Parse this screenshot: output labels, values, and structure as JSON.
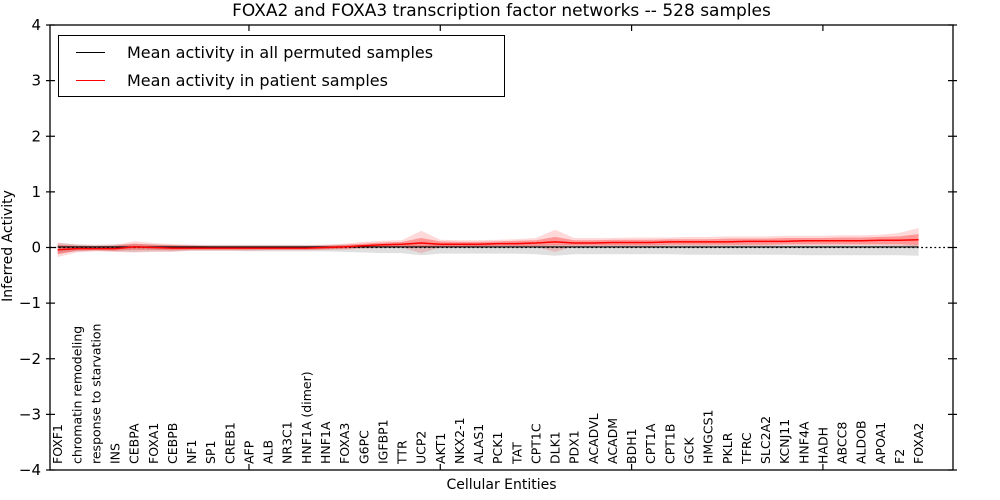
{
  "title": "FOXA2 and FOXA3 transcription factor networks -- 528 samples",
  "legend": {
    "items": [
      {
        "label": "Mean activity in all permuted samples",
        "color": "#000000"
      },
      {
        "label": "Mean activity in patient samples",
        "color": "#ff0000"
      }
    ]
  },
  "chart_data": {
    "type": "line",
    "title": "FOXA2 and FOXA3 transcription factor networks -- 528 samples",
    "xlabel": "Cellular Entities",
    "ylabel": "Inferred Activity",
    "ylim": [
      -4,
      4
    ],
    "yticks": [
      4,
      3,
      2,
      1,
      0,
      -1,
      -2,
      -3,
      -4
    ],
    "ytick_labels": [
      "4",
      "3",
      "2",
      "1",
      "0",
      "−1",
      "−2",
      "−3",
      "−4"
    ],
    "xticks": [
      10,
      20,
      30,
      40
    ],
    "grid": false,
    "legend_position": "upper left",
    "zero_line": 0,
    "categories": [
      "FOXF1",
      "chromatin remodeling",
      "response to starvation",
      "INS",
      "CEBPA",
      "FOXA1",
      "CEBPB",
      "NF1",
      "SP1",
      "CREB1",
      "AFP",
      "ALB",
      "NR3C1",
      "HNF1A (dimer)",
      "HNF1A",
      "FOXA3",
      "G6PC",
      "IGFBP1",
      "TTR",
      "UCP2",
      "AKT1",
      "NKX2-1",
      "ALAS1",
      "PCK1",
      "TAT",
      "CPT1C",
      "DLK1",
      "PDX1",
      "ACADVL",
      "ACADM",
      "BDH1",
      "CPT1A",
      "CPT1B",
      "GCK",
      "HMGCS1",
      "PKLR",
      "TFRC",
      "SLC2A2",
      "KCNJ11",
      "HNF4A",
      "HADH",
      "ABCC8",
      "ALDOB",
      "APOA1",
      "F2",
      "FOXA2"
    ],
    "series": [
      {
        "name": "Mean activity in all permuted samples",
        "color": "#000000",
        "width": 1.1,
        "values": [
          0.01,
          0.01,
          0.01,
          0.01,
          0.01,
          0.01,
          0.01,
          0.01,
          0.01,
          0.01,
          0.01,
          0.01,
          0.01,
          0.01,
          0.01,
          0.01,
          0.01,
          0.01,
          0.01,
          0.01,
          0.01,
          0.01,
          0.01,
          0.01,
          0.01,
          0.01,
          0.01,
          0.01,
          0.01,
          0.01,
          0.01,
          0.01,
          0.01,
          0.01,
          0.01,
          0.01,
          0.01,
          0.01,
          0.01,
          0.01,
          0.01,
          0.01,
          0.01,
          0.01,
          0.01,
          0.01
        ]
      },
      {
        "name": "Mean activity in patient samples",
        "color": "#ff0000",
        "width": 1.5,
        "values": [
          -0.04,
          -0.02,
          -0.02,
          -0.02,
          0.01,
          0.0,
          -0.01,
          -0.01,
          -0.01,
          -0.01,
          -0.01,
          -0.01,
          -0.01,
          -0.01,
          0.0,
          0.01,
          0.03,
          0.05,
          0.06,
          0.08,
          0.06,
          0.06,
          0.06,
          0.07,
          0.07,
          0.08,
          0.1,
          0.08,
          0.08,
          0.09,
          0.09,
          0.09,
          0.1,
          0.1,
          0.1,
          0.1,
          0.11,
          0.11,
          0.11,
          0.12,
          0.12,
          0.12,
          0.12,
          0.13,
          0.13,
          0.14
        ]
      }
    ],
    "bands": [
      {
        "name": "permuted-range",
        "color": "#000000",
        "opacity": 0.12,
        "low": [
          -0.1,
          -0.07,
          -0.06,
          -0.07,
          -0.08,
          -0.07,
          -0.07,
          -0.06,
          -0.06,
          -0.06,
          -0.07,
          -0.07,
          -0.07,
          -0.07,
          -0.07,
          -0.08,
          -0.09,
          -0.1,
          -0.1,
          -0.14,
          -0.11,
          -0.11,
          -0.11,
          -0.11,
          -0.11,
          -0.12,
          -0.15,
          -0.12,
          -0.12,
          -0.12,
          -0.12,
          -0.12,
          -0.12,
          -0.13,
          -0.13,
          -0.13,
          -0.13,
          -0.13,
          -0.13,
          -0.14,
          -0.14,
          -0.14,
          -0.14,
          -0.14,
          -0.14,
          -0.15
        ],
        "high": [
          0.08,
          0.06,
          0.05,
          0.06,
          0.06,
          0.06,
          0.05,
          0.05,
          0.05,
          0.05,
          0.05,
          0.05,
          0.05,
          0.05,
          0.05,
          0.05,
          0.05,
          0.05,
          0.05,
          0.05,
          0.05,
          0.05,
          0.05,
          0.05,
          0.05,
          0.05,
          0.05,
          0.05,
          0.05,
          0.05,
          0.05,
          0.05,
          0.05,
          0.05,
          0.05,
          0.05,
          0.05,
          0.05,
          0.05,
          0.05,
          0.05,
          0.05,
          0.05,
          0.05,
          0.05,
          0.06
        ]
      },
      {
        "name": "patient-outer",
        "color": "#ff0000",
        "opacity": 0.15,
        "low": [
          -0.17,
          -0.09,
          -0.07,
          -0.08,
          -0.09,
          -0.08,
          -0.08,
          -0.06,
          -0.06,
          -0.06,
          -0.06,
          -0.05,
          -0.05,
          -0.05,
          -0.05,
          -0.04,
          -0.02,
          -0.01,
          0.0,
          -0.1,
          0.0,
          0.0,
          0.0,
          0.01,
          0.01,
          0.01,
          -0.08,
          0.02,
          0.02,
          0.02,
          0.02,
          0.02,
          0.03,
          0.03,
          0.03,
          0.03,
          0.03,
          0.03,
          0.04,
          0.04,
          0.04,
          0.04,
          0.04,
          0.04,
          0.03,
          0.02
        ],
        "high": [
          0.09,
          0.05,
          0.04,
          0.05,
          0.11,
          0.08,
          0.06,
          0.05,
          0.04,
          0.04,
          0.04,
          0.04,
          0.04,
          0.04,
          0.05,
          0.07,
          0.1,
          0.12,
          0.13,
          0.3,
          0.14,
          0.13,
          0.13,
          0.14,
          0.15,
          0.17,
          0.32,
          0.17,
          0.17,
          0.17,
          0.18,
          0.18,
          0.18,
          0.19,
          0.19,
          0.2,
          0.2,
          0.2,
          0.21,
          0.21,
          0.21,
          0.22,
          0.22,
          0.23,
          0.26,
          0.35
        ]
      },
      {
        "name": "patient-inner",
        "color": "#ff0000",
        "opacity": 0.3,
        "low": [
          -0.12,
          -0.06,
          -0.05,
          -0.06,
          -0.04,
          -0.04,
          -0.05,
          -0.04,
          -0.04,
          -0.04,
          -0.04,
          -0.04,
          -0.04,
          -0.04,
          -0.03,
          -0.02,
          0.0,
          0.01,
          0.02,
          0.02,
          0.02,
          0.02,
          0.02,
          0.03,
          0.03,
          0.03,
          0.04,
          0.04,
          0.04,
          0.04,
          0.04,
          0.04,
          0.05,
          0.05,
          0.05,
          0.05,
          0.05,
          0.05,
          0.06,
          0.06,
          0.06,
          0.06,
          0.06,
          0.06,
          0.06,
          0.05
        ],
        "high": [
          0.05,
          0.03,
          0.02,
          0.03,
          0.07,
          0.05,
          0.04,
          0.03,
          0.02,
          0.02,
          0.02,
          0.02,
          0.02,
          0.02,
          0.03,
          0.05,
          0.07,
          0.09,
          0.1,
          0.17,
          0.11,
          0.1,
          0.1,
          0.11,
          0.12,
          0.13,
          0.19,
          0.13,
          0.13,
          0.14,
          0.14,
          0.14,
          0.15,
          0.15,
          0.15,
          0.16,
          0.16,
          0.16,
          0.17,
          0.17,
          0.17,
          0.18,
          0.18,
          0.19,
          0.2,
          0.24
        ]
      }
    ]
  }
}
